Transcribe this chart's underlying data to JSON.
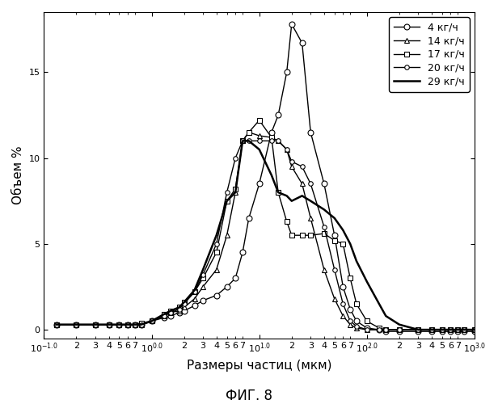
{
  "title": "",
  "xlabel": "Размеры частиц (мкм)",
  "ylabel": "Объем %",
  "fig_caption": "ФИГ. 8",
  "background_color": "#ffffff",
  "series": [
    {
      "label": "4 кг/ч",
      "marker": "o",
      "x": [
        0.13,
        0.2,
        0.3,
        0.4,
        0.5,
        0.6,
        0.7,
        0.8,
        1.0,
        1.3,
        1.5,
        1.8,
        2.0,
        2.5,
        3.0,
        4.0,
        5.0,
        6.0,
        7.0,
        8.0,
        10.0,
        13.0,
        15.0,
        18.0,
        20.0,
        25.0,
        30.0,
        40.0,
        50.0,
        60.0,
        70.0,
        80.0,
        100.0,
        130.0,
        150.0,
        200.0,
        300.0,
        400.0,
        500.0,
        600.0,
        700.0,
        800.0,
        1000.0
      ],
      "y": [
        0.3,
        0.3,
        0.3,
        0.3,
        0.3,
        0.3,
        0.3,
        0.3,
        0.5,
        0.7,
        0.8,
        1.0,
        1.1,
        1.4,
        1.7,
        2.0,
        2.5,
        3.0,
        4.5,
        6.5,
        8.5,
        11.5,
        12.5,
        15.0,
        17.8,
        16.7,
        11.5,
        8.5,
        5.5,
        2.5,
        1.2,
        0.5,
        0.1,
        0.0,
        -0.1,
        -0.1,
        -0.1,
        -0.1,
        -0.1,
        -0.1,
        -0.1,
        -0.1,
        -0.1
      ]
    },
    {
      "label": "14 кг/ч",
      "marker": "^",
      "x": [
        0.13,
        0.2,
        0.3,
        0.4,
        0.5,
        0.6,
        0.7,
        0.8,
        1.0,
        1.3,
        1.5,
        1.8,
        2.0,
        2.5,
        3.0,
        4.0,
        5.0,
        6.0,
        7.0,
        8.0,
        10.0,
        13.0,
        15.0,
        18.0,
        20.0,
        25.0,
        30.0,
        40.0,
        50.0,
        60.0,
        70.0,
        80.0,
        100.0,
        200.0,
        300.0,
        400.0,
        500.0,
        600.0,
        700.0,
        800.0,
        1000.0
      ],
      "y": [
        0.3,
        0.3,
        0.3,
        0.3,
        0.3,
        0.3,
        0.3,
        0.3,
        0.5,
        0.8,
        1.0,
        1.1,
        1.3,
        1.8,
        2.5,
        3.5,
        5.5,
        8.0,
        11.0,
        11.5,
        11.3,
        11.2,
        11.0,
        10.5,
        9.5,
        8.5,
        6.5,
        3.5,
        1.8,
        0.8,
        0.3,
        0.1,
        0.0,
        0.0,
        0.0,
        0.0,
        0.0,
        0.0,
        0.0,
        0.0,
        0.0
      ]
    },
    {
      "label": "17 кг/ч",
      "marker": "s",
      "x": [
        0.13,
        0.2,
        0.3,
        0.4,
        0.5,
        0.6,
        0.7,
        0.8,
        1.0,
        1.3,
        1.5,
        1.8,
        2.0,
        2.5,
        3.0,
        4.0,
        5.0,
        6.0,
        7.0,
        8.0,
        10.0,
        13.0,
        15.0,
        18.0,
        20.0,
        25.0,
        30.0,
        40.0,
        50.0,
        60.0,
        70.0,
        80.0,
        100.0,
        130.0,
        150.0,
        200.0,
        300.0,
        400.0,
        500.0,
        600.0,
        700.0,
        800.0,
        1000.0
      ],
      "y": [
        0.3,
        0.3,
        0.3,
        0.3,
        0.3,
        0.3,
        0.3,
        0.4,
        0.5,
        0.9,
        1.1,
        1.3,
        1.6,
        2.2,
        3.0,
        4.5,
        7.5,
        8.2,
        11.0,
        11.5,
        12.2,
        11.2,
        8.0,
        6.3,
        5.5,
        5.5,
        5.5,
        5.6,
        5.2,
        5.0,
        3.0,
        1.5,
        0.5,
        0.1,
        0.0,
        0.0,
        0.0,
        0.0,
        0.0,
        0.0,
        0.0,
        0.0,
        0.0
      ]
    },
    {
      "label": "20 кг/ч",
      "marker": "o",
      "x": [
        0.13,
        0.2,
        0.3,
        0.4,
        0.5,
        0.6,
        0.7,
        0.8,
        1.0,
        1.3,
        1.5,
        1.8,
        2.0,
        2.5,
        3.0,
        4.0,
        5.0,
        6.0,
        7.0,
        8.0,
        10.0,
        13.0,
        15.0,
        18.0,
        20.0,
        25.0,
        30.0,
        40.0,
        50.0,
        60.0,
        70.0,
        80.0,
        100.0,
        130.0,
        150.0,
        200.0,
        300.0,
        400.0,
        500.0,
        600.0,
        700.0,
        800.0,
        1000.0
      ],
      "y": [
        0.3,
        0.3,
        0.3,
        0.3,
        0.3,
        0.3,
        0.3,
        0.3,
        0.5,
        0.8,
        1.0,
        1.2,
        1.5,
        2.2,
        3.2,
        5.0,
        8.0,
        10.0,
        11.0,
        11.0,
        11.0,
        11.0,
        11.0,
        10.5,
        9.8,
        9.5,
        8.5,
        6.0,
        3.5,
        1.5,
        0.5,
        0.2,
        0.0,
        0.0,
        0.0,
        0.0,
        0.0,
        0.0,
        0.0,
        0.0,
        0.0,
        0.0,
        0.0
      ]
    },
    {
      "label": "29 кг/ч",
      "marker": null,
      "x": [
        0.13,
        0.2,
        0.3,
        0.4,
        0.5,
        0.6,
        0.7,
        0.8,
        1.0,
        1.3,
        1.5,
        1.8,
        2.0,
        2.5,
        3.0,
        4.0,
        5.0,
        6.0,
        7.0,
        8.0,
        10.0,
        13.0,
        15.0,
        18.0,
        20.0,
        25.0,
        30.0,
        40.0,
        50.0,
        60.0,
        70.0,
        80.0,
        100.0,
        130.0,
        150.0,
        200.0,
        300.0,
        400.0,
        500.0,
        600.0,
        700.0,
        800.0,
        1000.0
      ],
      "y": [
        0.3,
        0.3,
        0.3,
        0.3,
        0.3,
        0.3,
        0.3,
        0.3,
        0.5,
        0.9,
        1.1,
        1.3,
        1.6,
        2.3,
        3.5,
        5.5,
        7.5,
        8.0,
        11.0,
        11.0,
        10.5,
        9.0,
        8.0,
        7.8,
        7.5,
        7.8,
        7.5,
        7.0,
        6.5,
        5.8,
        5.0,
        4.0,
        2.8,
        1.5,
        0.8,
        0.3,
        0.0,
        0.0,
        0.0,
        0.0,
        0.0,
        0.0,
        0.0
      ]
    }
  ],
  "xlim_log": [
    -1.0,
    3.0
  ],
  "ylim": [
    -0.5,
    18.5
  ],
  "yticks": [
    0,
    5,
    10,
    15
  ],
  "legend_loc": "upper right",
  "fontsize_labels": 11,
  "fontsize_ticks": 8,
  "fontsize_legend": 9,
  "fontsize_caption": 12,
  "marker_sizes": {
    "4 кг/ч": 5,
    "14 кг/ч": 5,
    "17 кг/ч": 5,
    "20 кг/ч": 4,
    "29 кг/ч": 0
  },
  "linewidths": {
    "4 кг/ч": 1.0,
    "14 кг/ч": 1.0,
    "17 кг/ч": 1.0,
    "20 кг/ч": 1.0,
    "29 кг/ч": 1.8
  }
}
